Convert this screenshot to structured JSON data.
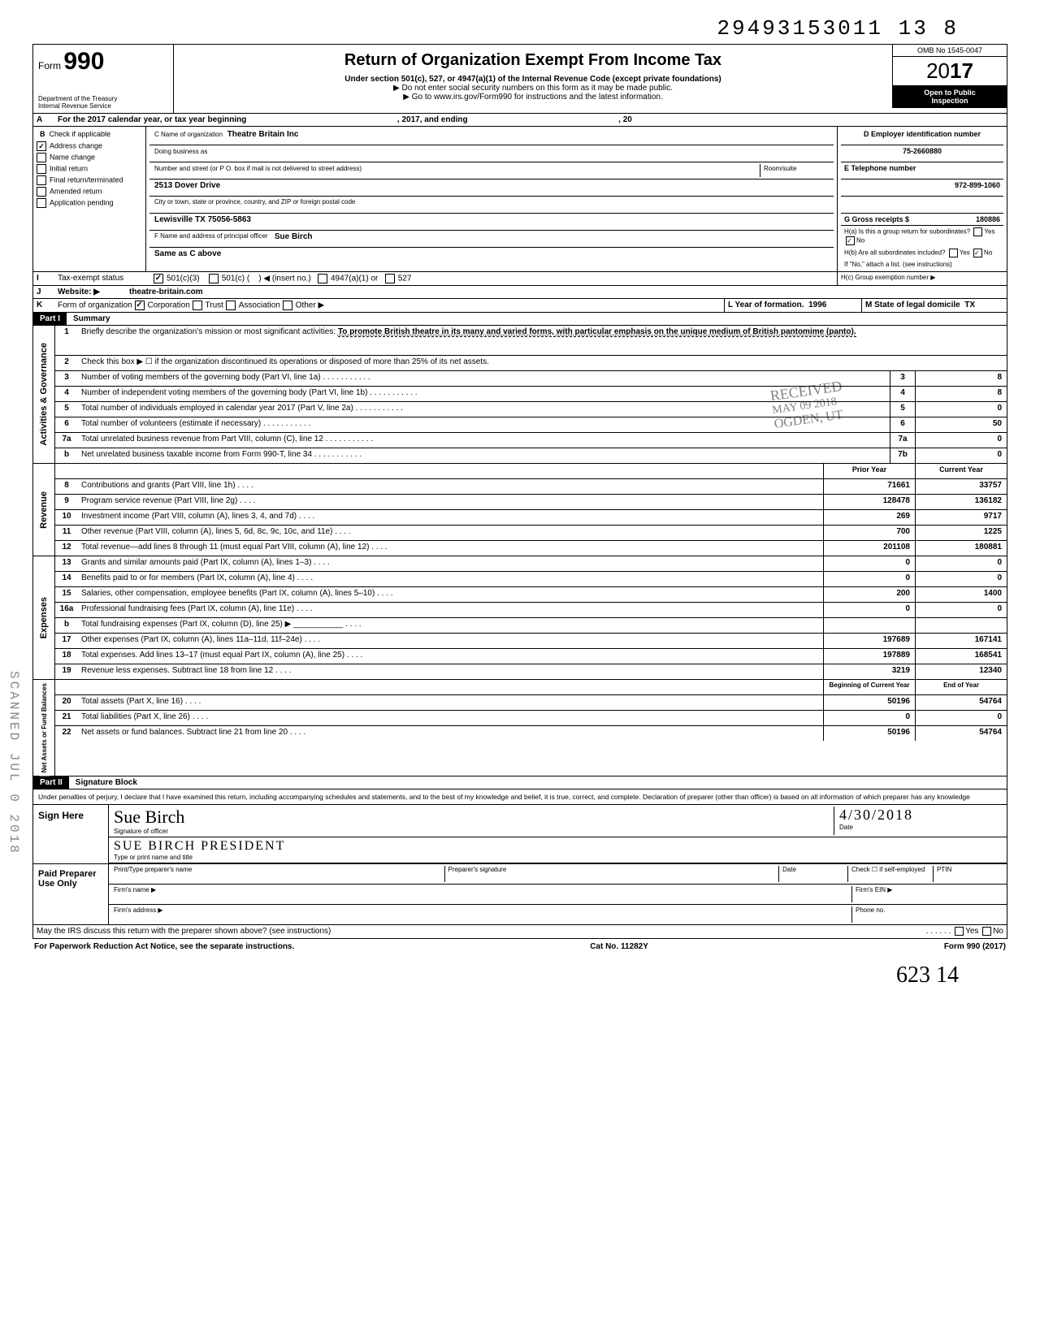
{
  "meta": {
    "top_number": "29493153011 13  8",
    "form_label": "Form",
    "form_number": "990",
    "title": "Return of Organization Exempt From Income Tax",
    "subtitle": "Under section 501(c), 527, or 4947(a)(1) of the Internal Revenue Code (except private foundations)",
    "note1": "▶ Do not enter social security numbers on this form as it may be made public.",
    "note2": "▶ Go to www.irs.gov/Form990 for instructions and the latest information.",
    "dept1": "Department of the Treasury",
    "dept2": "Internal Revenue Service",
    "omb": "OMB No 1545-0047",
    "year_prefix": "20",
    "year_bold": "17",
    "open1": "Open to Public",
    "open2": "Inspection"
  },
  "A": {
    "label": "A",
    "text_left": "For the 2017 calendar year, or tax year beginning",
    "text_mid": ", 2017, and ending",
    "text_right": ", 20"
  },
  "B": {
    "label": "B",
    "check_header": "Check if applicable",
    "items": [
      "Address change",
      "Name change",
      "Initial return",
      "Final return/terminated",
      "Amended return",
      "Application pending"
    ],
    "address_change_checked": true
  },
  "C": {
    "label_line1": "C Name of organization",
    "org_name": "Theatre Britain Inc",
    "dba_label": "Doing business as",
    "addr_label": "Number and street (or P O. box if mail is not delivered to street address)",
    "room_label": "Room/suite",
    "street": "2513 Dover Drive",
    "city_label": "City or town, state or province, country, and ZIP or foreign postal code",
    "city": "Lewisville TX 75056-5863",
    "F_label": "F Name and address of principal officer",
    "F_name": "Sue Birch",
    "F_same": "Same as C above"
  },
  "D": {
    "label": "D Employer identification number",
    "ein": "75-2660880",
    "E_label": "E Telephone number",
    "phone": "972-899-1060",
    "G_label": "G Gross receipts $",
    "G_value": "180886"
  },
  "H": {
    "a": "H(a) Is this a group return for subordinates?",
    "a_yes": "Yes",
    "a_no": "No",
    "a_no_checked": true,
    "b": "H(b) Are all subordinates included?",
    "b_yes": "Yes",
    "b_no": "No",
    "b_no_checked": true,
    "b_note": "If \"No,\" attach a list. (see instructions)",
    "c": "H(c) Group exemption number ▶"
  },
  "I": {
    "label": "I",
    "text": "Tax-exempt status",
    "c501c3": "501(c)(3)",
    "c501c3_checked": true,
    "c501c": "501(c) (",
    "insert": "◀ (insert no.)",
    "c4947": "4947(a)(1) or",
    "c527": "527"
  },
  "J": {
    "label": "J",
    "text": "Website: ▶",
    "value": "theatre-britain.com"
  },
  "K": {
    "label": "K",
    "text": "Form of organization",
    "corp": "Corporation",
    "corp_checked": true,
    "trust": "Trust",
    "assoc": "Association",
    "other": "Other ▶",
    "L": "L Year of formation.",
    "L_val": "1996",
    "M": "M State of legal domicile",
    "M_val": "TX"
  },
  "part1": {
    "header": "Part I",
    "title": "Summary",
    "line1_label": "1",
    "line1_text": "Briefly describe the organization's mission or most significant activities:",
    "line1_value": "To promote British theatre in its many and varied forms, with particular emphasis on the unique medium of British pantomime (panto).",
    "line2": "Check this box ▶ ☐ if the organization discontinued its operations or disposed of more than 25% of its net assets."
  },
  "governance": {
    "tab": "Activities & Governance",
    "rows": [
      {
        "n": "3",
        "desc": "Number of voting members of the governing body (Part VI, line 1a)",
        "box": "3",
        "val": "8"
      },
      {
        "n": "4",
        "desc": "Number of independent voting members of the governing body (Part VI, line 1b)",
        "box": "4",
        "val": "8"
      },
      {
        "n": "5",
        "desc": "Total number of individuals employed in calendar year 2017 (Part V, line 2a)",
        "box": "5",
        "val": "0"
      },
      {
        "n": "6",
        "desc": "Total number of volunteers (estimate if necessary)",
        "box": "6",
        "val": "50"
      },
      {
        "n": "7a",
        "desc": "Total unrelated business revenue from Part VIII, column (C), line 12",
        "box": "7a",
        "val": "0"
      },
      {
        "n": "b",
        "desc": "Net unrelated business taxable income from Form 990-T, line 34",
        "box": "7b",
        "val": "0"
      }
    ]
  },
  "stamp": {
    "l1": "RECEIVED",
    "l2": "MAY 09 2018",
    "l3": "OGDEN, UT"
  },
  "revenue": {
    "tab": "Revenue",
    "head_prior": "Prior Year",
    "head_curr": "Current Year",
    "rows": [
      {
        "n": "8",
        "desc": "Contributions and grants (Part VIII, line 1h)",
        "prior": "71661",
        "curr": "33757"
      },
      {
        "n": "9",
        "desc": "Program service revenue (Part VIII, line 2g)",
        "prior": "128478",
        "curr": "136182"
      },
      {
        "n": "10",
        "desc": "Investment income (Part VIII, column (A), lines 3, 4, and 7d)",
        "prior": "269",
        "curr": "9717"
      },
      {
        "n": "11",
        "desc": "Other revenue (Part VIII, column (A), lines 5, 6d, 8c, 9c, 10c, and 11e)",
        "prior": "700",
        "curr": "1225"
      },
      {
        "n": "12",
        "desc": "Total revenue—add lines 8 through 11 (must equal Part VIII, column (A), line 12)",
        "prior": "201108",
        "curr": "180881"
      }
    ]
  },
  "expenses": {
    "tab": "Expenses",
    "rows": [
      {
        "n": "13",
        "desc": "Grants and similar amounts paid (Part IX, column (A), lines 1–3)",
        "prior": "0",
        "curr": "0"
      },
      {
        "n": "14",
        "desc": "Benefits paid to or for members (Part IX, column (A), line 4)",
        "prior": "0",
        "curr": "0"
      },
      {
        "n": "15",
        "desc": "Salaries, other compensation, employee benefits (Part IX, column (A), lines 5–10)",
        "prior": "200",
        "curr": "1400"
      },
      {
        "n": "16a",
        "desc": "Professional fundraising fees (Part IX, column (A), line 11e)",
        "prior": "0",
        "curr": "0"
      },
      {
        "n": "b",
        "desc": "Total fundraising expenses (Part IX, column (D), line 25) ▶ ___________",
        "prior": "",
        "curr": ""
      },
      {
        "n": "17",
        "desc": "Other expenses (Part IX, column (A), lines 11a–11d, 11f–24e)",
        "prior": "197689",
        "curr": "167141"
      },
      {
        "n": "18",
        "desc": "Total expenses. Add lines 13–17 (must equal Part IX, column (A), line 25)",
        "prior": "197889",
        "curr": "168541"
      },
      {
        "n": "19",
        "desc": "Revenue less expenses. Subtract line 18 from line 12",
        "prior": "3219",
        "curr": "12340"
      }
    ]
  },
  "netassets": {
    "tab": "Net Assets or Fund Balances",
    "head_begin": "Beginning of Current Year",
    "head_end": "End of Year",
    "rows": [
      {
        "n": "20",
        "desc": "Total assets (Part X, line 16)",
        "prior": "50196",
        "curr": "54764"
      },
      {
        "n": "21",
        "desc": "Total liabilities (Part X, line 26)",
        "prior": "0",
        "curr": "0"
      },
      {
        "n": "22",
        "desc": "Net assets or fund balances. Subtract line 21 from line 20",
        "prior": "50196",
        "curr": "54764"
      }
    ]
  },
  "part2": {
    "header": "Part II",
    "title": "Signature Block",
    "declare": "Under penalties of perjury, I declare that I have examined this return, including accompanying schedules and statements, and to the best of my knowledge and belief, it is true, correct, and complete. Declaration of preparer (other than officer) is based on all information of which preparer has any knowledge"
  },
  "sign": {
    "sign_here": "Sign Here",
    "sig_img": "Sue Birch",
    "sig_label": "Signature of officer",
    "date_label": "Date",
    "date": "4/30/2018",
    "name": "SUE BIRCH   PRESIDENT",
    "name_label": "Type or print name and title",
    "paid": "Paid Preparer Use Only",
    "prep_name_label": "Print/Type preparer's name",
    "prep_sig_label": "Preparer's signature",
    "prep_date_label": "Date",
    "check_self": "Check ☐ if self-employed",
    "ptin": "PTIN",
    "firm_name": "Firm's name ▶",
    "firm_ein": "Firm's EIN ▶",
    "firm_addr": "Firm's address ▶",
    "phone": "Phone no."
  },
  "footer": {
    "discuss": "May the IRS discuss this return with the preparer shown above? (see instructions)",
    "yes": "Yes",
    "no": "No",
    "paperwork": "For Paperwork Reduction Act Notice, see the separate instructions.",
    "cat": "Cat No. 11282Y",
    "form": "Form 990 (2017)"
  },
  "side_text": "SCANNED JUL 0 2018",
  "bottom_hand": "623       14"
}
